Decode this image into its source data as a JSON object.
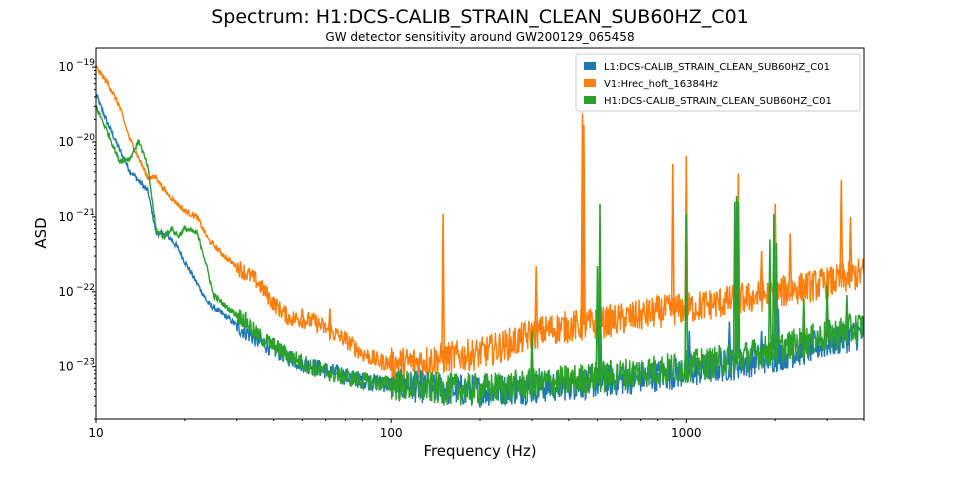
{
  "chart_data": {
    "type": "line",
    "title": "Spectrum: H1:DCS-CALIB_STRAIN_CLEAN_SUB60HZ_C01",
    "subtitle": "GW detector sensitivity around GW200129_065458",
    "xlabel": "Frequency (Hz)",
    "ylabel": "ASD",
    "xscale": "log",
    "yscale": "log",
    "xlim": [
      10,
      4000
    ],
    "ylim": [
      2e-24,
      1.8e-19
    ],
    "grid": false,
    "legend_position": "top-right",
    "x_ticks": [
      {
        "value": 10,
        "label": "10"
      },
      {
        "value": 100,
        "label": "100"
      },
      {
        "value": 1000,
        "label": "1000"
      }
    ],
    "y_ticks": [
      {
        "value": 1e-23,
        "mantissa": "10",
        "exp": "−23"
      },
      {
        "value": 1e-22,
        "mantissa": "10",
        "exp": "−22"
      },
      {
        "value": 1e-21,
        "mantissa": "10",
        "exp": "−21"
      },
      {
        "value": 1e-20,
        "mantissa": "10",
        "exp": "−20"
      },
      {
        "value": 1e-19,
        "mantissa": "10",
        "exp": "−19"
      }
    ],
    "series": [
      {
        "name": "L1:DCS-CALIB_STRAIN_CLEAN_SUB60HZ_C01",
        "color": "#1f77b4",
        "points": [
          [
            10,
            4.3e-20
          ],
          [
            11,
            1.7e-20
          ],
          [
            12,
            8e-21
          ],
          [
            13,
            4.2e-21
          ],
          [
            14,
            3e-21
          ],
          [
            15,
            2.2e-21
          ],
          [
            16,
            6e-22
          ],
          [
            17,
            6e-22
          ],
          [
            18,
            5e-22
          ],
          [
            19,
            3.8e-22
          ],
          [
            20,
            2.5e-22
          ],
          [
            22,
            1.3e-22
          ],
          [
            24,
            7e-23
          ],
          [
            26,
            5.5e-23
          ],
          [
            28,
            4.5e-23
          ],
          [
            30,
            3.5e-23
          ],
          [
            34,
            2.5e-23
          ],
          [
            40,
            1.7e-23
          ],
          [
            50,
            1.1e-23
          ],
          [
            60,
            9e-24
          ],
          [
            70,
            7.5e-24
          ],
          [
            80,
            6.5e-24
          ],
          [
            100,
            5.8e-24
          ],
          [
            130,
            5.3e-24
          ],
          [
            150,
            5e-24
          ],
          [
            200,
            4.8e-24
          ],
          [
            250,
            5e-24
          ],
          [
            300,
            5.2e-24
          ],
          [
            400,
            5.8e-24
          ],
          [
            500,
            6.2e-24
          ],
          [
            700,
            7.2e-24
          ],
          [
            1000,
            8.5e-24
          ],
          [
            1500,
            1.1e-23
          ],
          [
            2000,
            1.4e-23
          ],
          [
            2500,
            1.7e-23
          ],
          [
            3000,
            2.1e-23
          ],
          [
            3500,
            2.5e-23
          ],
          [
            4000,
            2.8e-23
          ]
        ],
        "peaks": [
          [
            300,
            1.5e-23
          ],
          [
            512,
            5e-23
          ],
          [
            1024,
            3e-23
          ],
          [
            1400,
            4e-23
          ],
          [
            1500,
            5e-23
          ],
          [
            1800,
            3e-23
          ],
          [
            2000,
            8e-23
          ],
          [
            2050,
            6e-23
          ],
          [
            2500,
            4e-23
          ],
          [
            3000,
            5e-23
          ],
          [
            3500,
            4e-23
          ]
        ]
      },
      {
        "name": "V1:Hrec_hoft_16384Hz",
        "color": "#ff7f0e",
        "points": [
          [
            10,
            1e-19
          ],
          [
            11,
            6e-20
          ],
          [
            12,
            3e-20
          ],
          [
            13,
            1.1e-20
          ],
          [
            14,
            6e-21
          ],
          [
            15,
            3.3e-21
          ],
          [
            16,
            3.4e-21
          ],
          [
            17,
            2.3e-21
          ],
          [
            18,
            1.8e-21
          ],
          [
            20,
            1.2e-21
          ],
          [
            22,
            1e-21
          ],
          [
            24,
            5e-22
          ],
          [
            26,
            3.6e-22
          ],
          [
            28,
            2.7e-22
          ],
          [
            30,
            2.2e-22
          ],
          [
            35,
            1.4e-22
          ],
          [
            40,
            7e-23
          ],
          [
            45,
            4.5e-23
          ],
          [
            55,
            4e-23
          ],
          [
            60,
            3.2e-23
          ],
          [
            70,
            2.3e-23
          ],
          [
            80,
            1.5e-23
          ],
          [
            90,
            1.2e-23
          ],
          [
            100,
            1.1e-23
          ],
          [
            120,
            1.15e-23
          ],
          [
            150,
            1.3e-23
          ],
          [
            200,
            1.5e-23
          ],
          [
            250,
            2e-23
          ],
          [
            300,
            2.7e-23
          ],
          [
            350,
            3.2e-23
          ],
          [
            400,
            3.4e-23
          ],
          [
            500,
            3.8e-23
          ],
          [
            600,
            4.3e-23
          ],
          [
            700,
            4.8e-23
          ],
          [
            800,
            5.4e-23
          ],
          [
            1000,
            6e-23
          ],
          [
            1200,
            6.8e-23
          ],
          [
            1500,
            7.8e-23
          ],
          [
            2000,
            9.5e-23
          ],
          [
            2500,
            1.15e-22
          ],
          [
            3000,
            1.3e-22
          ],
          [
            3500,
            1.55e-22
          ],
          [
            4000,
            1.8e-22
          ]
        ],
        "peaks": [
          [
            50,
            6e-23
          ],
          [
            62,
            6e-23
          ],
          [
            100,
            1.5e-23
          ],
          [
            150,
            1.1e-21
          ],
          [
            200,
            1.7e-23
          ],
          [
            310,
            2.2e-22
          ],
          [
            445,
            2.4e-20
          ],
          [
            450,
            1.7e-20
          ],
          [
            900,
            5.1e-21
          ],
          [
            1000,
            6.5e-21
          ],
          [
            1500,
            3.8e-21
          ],
          [
            1800,
            3.5e-22
          ],
          [
            2000,
            1.5e-21
          ],
          [
            2250,
            6e-22
          ],
          [
            3350,
            3.1e-21
          ],
          [
            3600,
            1e-21
          ]
        ]
      },
      {
        "name": "H1:DCS-CALIB_STRAIN_CLEAN_SUB60HZ_C01",
        "color": "#2ca02c",
        "points": [
          [
            10,
            3e-20
          ],
          [
            11,
            1.3e-20
          ],
          [
            12,
            5.6e-21
          ],
          [
            13,
            6e-21
          ],
          [
            14,
            1.05e-20
          ],
          [
            15,
            4.5e-21
          ],
          [
            16,
            6.5e-22
          ],
          [
            17,
            5.5e-22
          ],
          [
            18,
            7e-22
          ],
          [
            19,
            5.5e-22
          ],
          [
            20,
            7e-22
          ],
          [
            22,
            6e-22
          ],
          [
            23,
            3.5e-22
          ],
          [
            24,
            1.8e-22
          ],
          [
            25,
            9e-23
          ],
          [
            28,
            6e-23
          ],
          [
            30,
            5e-23
          ],
          [
            32,
            4.2e-23
          ],
          [
            35,
            2.7e-23
          ],
          [
            40,
            1.9e-23
          ],
          [
            45,
            1.4e-23
          ],
          [
            50,
            1.15e-23
          ],
          [
            55,
            9.5e-24
          ],
          [
            60,
            8.5e-24
          ],
          [
            70,
            7.2e-24
          ],
          [
            80,
            6.5e-24
          ],
          [
            100,
            5.8e-24
          ],
          [
            130,
            5.3e-24
          ],
          [
            150,
            5e-24
          ],
          [
            200,
            5e-24
          ],
          [
            250,
            5.4e-24
          ],
          [
            300,
            5.8e-24
          ],
          [
            400,
            6.5e-24
          ],
          [
            500,
            7.2e-24
          ],
          [
            700,
            8.5e-24
          ],
          [
            1000,
            1e-23
          ],
          [
            1500,
            1.3e-23
          ],
          [
            2000,
            1.7e-23
          ],
          [
            2500,
            2.1e-23
          ],
          [
            3000,
            2.6e-23
          ],
          [
            3500,
            3e-23
          ],
          [
            4000,
            3.5e-23
          ]
        ],
        "peaks": [
          [
            300,
            3e-23
          ],
          [
            500,
            2.2e-22
          ],
          [
            510,
            1.5e-21
          ],
          [
            1000,
            1.1e-21
          ],
          [
            1460,
            1.6e-21
          ],
          [
            1480,
            1.9e-21
          ],
          [
            1500,
            1.6e-21
          ],
          [
            1920,
            5e-22
          ],
          [
            1980,
            1.1e-21
          ],
          [
            2020,
            4.5e-22
          ],
          [
            2500,
            8e-23
          ],
          [
            3000,
            1.2e-22
          ],
          [
            3500,
            9e-23
          ]
        ]
      }
    ]
  }
}
